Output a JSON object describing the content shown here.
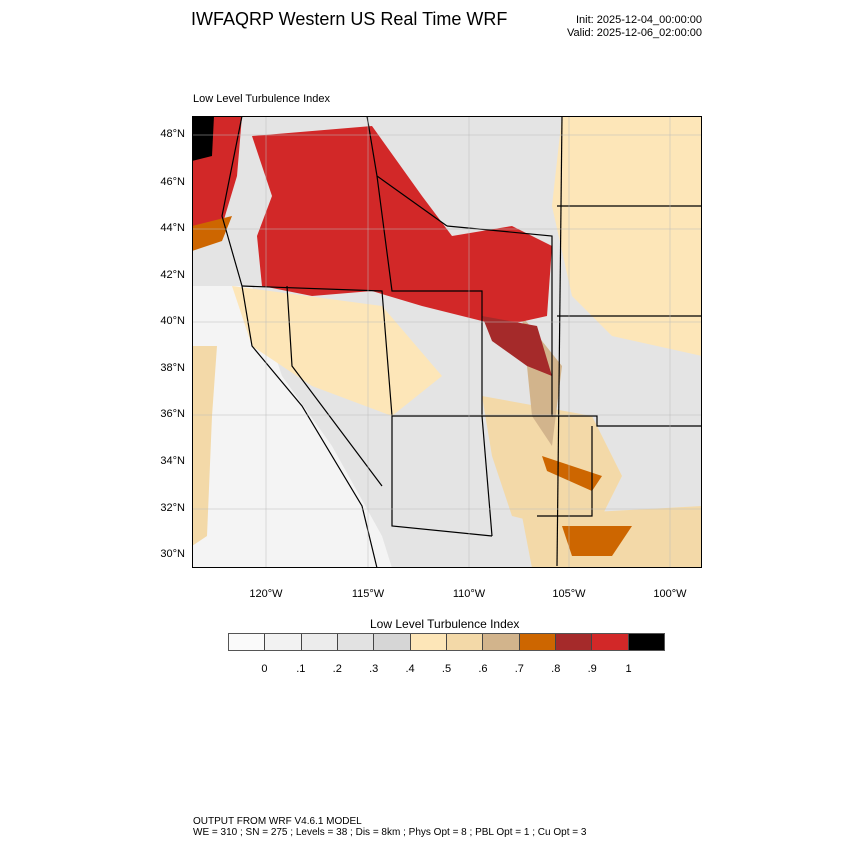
{
  "header": {
    "title": "IWFAQRP Western US Real Time WRF",
    "init": "Init: 2025-12-04_00:00:00",
    "valid": "Valid: 2025-12-06_02:00:00"
  },
  "plot": {
    "subtitle": "Low Level Turbulence Index",
    "lat_labels": [
      "48°N",
      "46°N",
      "44°N",
      "42°N",
      "40°N",
      "38°N",
      "36°N",
      "34°N",
      "32°N",
      "30°N"
    ],
    "lon_labels": [
      "120°W",
      "115°W",
      "110°W",
      "105°W",
      "100°W"
    ]
  },
  "colorbar": {
    "title": "Low Level Turbulence Index",
    "colors": [
      "#fafafa",
      "#f2f2f2",
      "#ececec",
      "#e2e2e2",
      "#d6d6d6",
      "#fde6b8",
      "#f3d9a8",
      "#d2b48c",
      "#cd6600",
      "#a52a2a",
      "#d22828",
      "#000000"
    ],
    "labels": [
      "0",
      ".1",
      ".2",
      ".3",
      ".4",
      ".5",
      ".6",
      ".7",
      ".8",
      ".9",
      "1"
    ]
  },
  "footer": {
    "line1": "OUTPUT FROM WRF V4.6.1 MODEL",
    "line2": "WE = 310 ; SN = 275 ; Levels = 38 ; Dis = 8km ; Phys Opt = 8 ; PBL Opt = 1 ; Cu Opt = 3"
  }
}
